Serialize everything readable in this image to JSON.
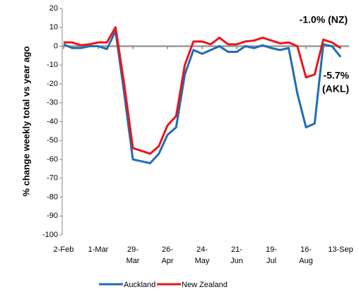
{
  "chart_data": {
    "type": "line",
    "y_label": "% change weekly total  vs year ago",
    "categories": [
      "2-Feb",
      null,
      null,
      null,
      "1-Mar",
      null,
      null,
      null,
      "29-Mar",
      null,
      null,
      null,
      "26-Apr",
      null,
      null,
      null,
      "24-May",
      null,
      null,
      null,
      "21-Jun",
      null,
      null,
      null,
      "19-Jul",
      null,
      null,
      null,
      "16-Aug",
      null,
      null,
      null,
      "13-Sep"
    ],
    "series": [
      {
        "name": "Auckland",
        "color": "#1f6eb4",
        "values": [
          1,
          -1,
          -1,
          0,
          0,
          -1.5,
          8,
          -25,
          -60,
          -61,
          -62,
          -57,
          -47,
          -43,
          -15,
          -2,
          -4,
          -2,
          0,
          -3,
          -3,
          0,
          -1,
          0.5,
          -1,
          -2,
          -1,
          -25,
          -43,
          -41,
          1,
          0,
          -5.7
        ]
      },
      {
        "name": "New Zealand",
        "color": "#e8161b",
        "values": [
          2,
          2,
          0.5,
          1,
          2,
          2,
          10,
          -20,
          -54,
          -55.5,
          -57,
          -53,
          -42,
          -37,
          -10,
          2.5,
          2.5,
          1,
          4.5,
          1,
          1,
          2.5,
          3,
          4.5,
          3,
          1.5,
          2,
          0,
          -16.5,
          -15,
          3.5,
          2,
          -1.0
        ]
      }
    ],
    "ylim": [
      -100,
      20
    ],
    "yticks": [
      -100,
      -90,
      -80,
      -70,
      -60,
      -50,
      -40,
      -30,
      -20,
      -10,
      0,
      10,
      20
    ],
    "grid": false,
    "annotations": [
      {
        "lines": [
          "-1.0% (NZ)"
        ],
        "color": "#e8161b"
      },
      {
        "lines": [
          "-5.7%",
          "(AKL)"
        ],
        "color": "#1f6eb4"
      }
    ]
  }
}
